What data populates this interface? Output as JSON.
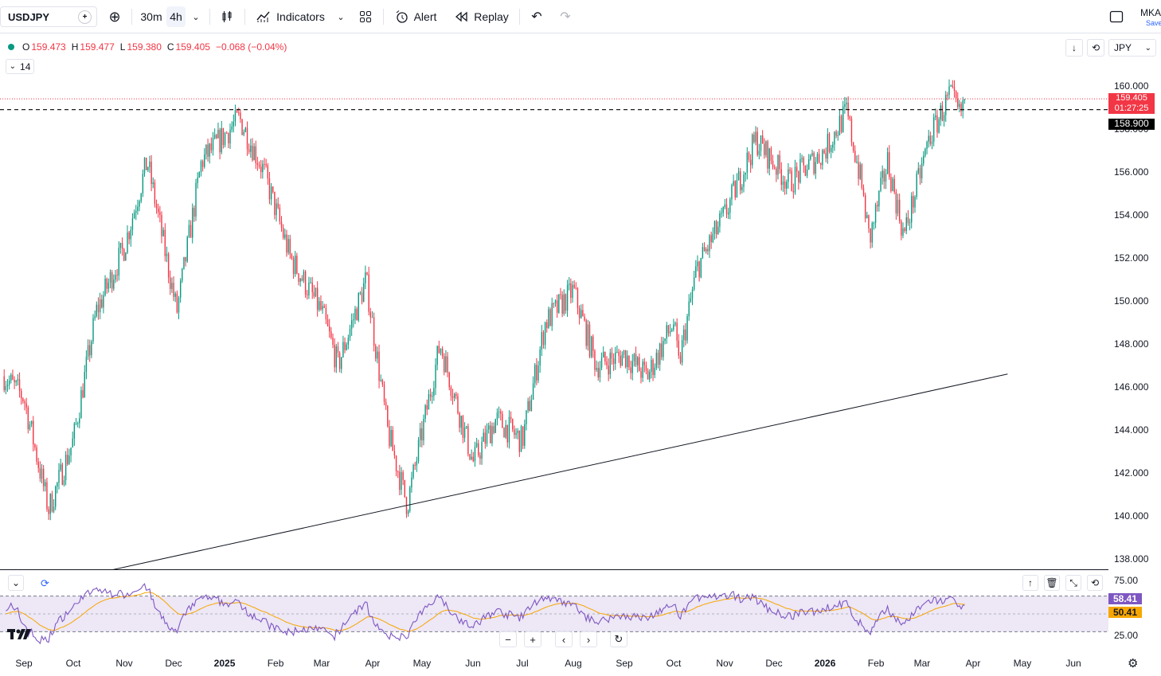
{
  "toolbar": {
    "symbol": "USDJPY",
    "intervals": [
      "30m",
      "4h"
    ],
    "active_interval": "4h",
    "indicators_label": "Indicators",
    "alert_label": "Alert",
    "replay_label": "Replay",
    "account_abbr": "MKA",
    "save_label": "Save"
  },
  "legend": {
    "open_key": "O",
    "open": "159.473",
    "high_key": "H",
    "high": "159.477",
    "low_key": "L",
    "low": "159.380",
    "close_key": "C",
    "close": "159.405",
    "change": "−0.068 (−0.04%)",
    "rsi_length": "14"
  },
  "currency": "JPY",
  "price_scale": {
    "ticks": [
      "160.000",
      "156.000",
      "154.000",
      "152.000",
      "150.000",
      "148.000",
      "146.000",
      "144.000",
      "142.000",
      "140.000",
      "138.000"
    ],
    "partially_hidden_tick": "158.000",
    "last_price": "159.405",
    "countdown": "01:27:25",
    "level_line": "158.900"
  },
  "rsi_pane": {
    "ticks": [
      "75.00",
      "25.00"
    ],
    "rsi_value": "58.41",
    "rsi_ma_value": "50.41"
  },
  "time_axis": [
    "Sep",
    "Oct",
    "Nov",
    "Dec",
    "2025",
    "Feb",
    "Mar",
    "Apr",
    "May",
    "Jun",
    "Jul",
    "Aug",
    "Sep",
    "Oct",
    "Nov",
    "Dec",
    "2026",
    "Feb",
    "Mar",
    "Apr",
    "May",
    "Jun"
  ],
  "colors": {
    "up": "#089981",
    "down": "#f23645",
    "rsi_line": "#7e57c2",
    "rsi_ma": "#f7a600",
    "rsi_band": "#ede7f6",
    "level_line": "#000000"
  },
  "chart_data": {
    "type": "candlestick",
    "symbol": "USDJPY",
    "interval": "4h",
    "ylim": [
      137.5,
      161.0
    ],
    "close_path": [
      {
        "date": "2024-08-20",
        "price": 146.5
      },
      {
        "date": "2024-09-01",
        "price": 145.5
      },
      {
        "date": "2024-09-16",
        "price": 140.3
      },
      {
        "date": "2024-10-01",
        "price": 143.5
      },
      {
        "date": "2024-10-15",
        "price": 149.5
      },
      {
        "date": "2024-11-01",
        "price": 152.5
      },
      {
        "date": "2024-11-15",
        "price": 156.5
      },
      {
        "date": "2024-12-03",
        "price": 149.5
      },
      {
        "date": "2024-12-18",
        "price": 156.5
      },
      {
        "date": "2025-01-10",
        "price": 158.5
      },
      {
        "date": "2025-01-25",
        "price": 156.0
      },
      {
        "date": "2025-02-10",
        "price": 152.0
      },
      {
        "date": "2025-03-01",
        "price": 149.5
      },
      {
        "date": "2025-03-11",
        "price": 147.0
      },
      {
        "date": "2025-03-28",
        "price": 151.0
      },
      {
        "date": "2025-04-10",
        "price": 144.0
      },
      {
        "date": "2025-04-22",
        "price": 140.5
      },
      {
        "date": "2025-05-12",
        "price": 148.0
      },
      {
        "date": "2025-06-01",
        "price": 142.5
      },
      {
        "date": "2025-06-15",
        "price": 144.5
      },
      {
        "date": "2025-07-01",
        "price": 143.5
      },
      {
        "date": "2025-07-15",
        "price": 149.0
      },
      {
        "date": "2025-08-01",
        "price": 150.5
      },
      {
        "date": "2025-08-15",
        "price": 147.0
      },
      {
        "date": "2025-09-01",
        "price": 147.5
      },
      {
        "date": "2025-09-15",
        "price": 146.5
      },
      {
        "date": "2025-10-01",
        "price": 149.0
      },
      {
        "date": "2025-10-04",
        "price": 147.0
      },
      {
        "date": "2025-10-15",
        "price": 151.5
      },
      {
        "date": "2025-11-01",
        "price": 154.0
      },
      {
        "date": "2025-11-20",
        "price": 157.5
      },
      {
        "date": "2025-12-10",
        "price": 155.5
      },
      {
        "date": "2026-01-01",
        "price": 157.0
      },
      {
        "date": "2026-01-14",
        "price": 158.8
      },
      {
        "date": "2026-01-23",
        "price": 155.5
      },
      {
        "date": "2026-01-28",
        "price": 152.8
      },
      {
        "date": "2026-02-08",
        "price": 156.5
      },
      {
        "date": "2026-02-18",
        "price": 153.0
      },
      {
        "date": "2026-03-05",
        "price": 157.5
      },
      {
        "date": "2026-03-18",
        "price": 159.6
      },
      {
        "date": "2026-03-24",
        "price": 158.6
      },
      {
        "date": "2026-03-27",
        "price": 159.4
      }
    ],
    "trendline": {
      "from": {
        "date": "2024-10-25",
        "price": 137.5
      },
      "to": {
        "date": "2026-04-22",
        "price": 146.6
      }
    },
    "horizontal_level": 158.9,
    "last_price": 159.405
  }
}
